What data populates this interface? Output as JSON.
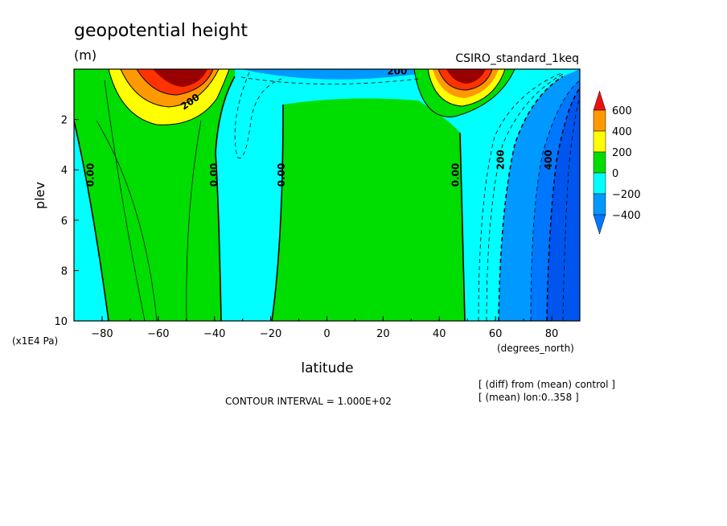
{
  "chart_data": {
    "type": "heatmap",
    "title": "geopotential height",
    "units": "(m)",
    "model_label": "CSIRO_standard_1keq",
    "xlabel": "latitude",
    "x_units": "(degrees_north)",
    "ylabel": "plev",
    "y_units": "(x1E4 Pa)",
    "xlim": [
      -90,
      90
    ],
    "ylim": [
      10,
      0
    ],
    "x_ticks": [
      -80,
      -60,
      -40,
      -20,
      0,
      20,
      40,
      60,
      80
    ],
    "x_tick_labels": [
      "−80",
      "−60",
      "−40",
      "−20",
      "0",
      "20",
      "40",
      "60",
      "80"
    ],
    "y_ticks": [
      2,
      4,
      6,
      8,
      10
    ],
    "y_tick_labels": [
      "2",
      "4",
      "6",
      "8",
      "10"
    ],
    "contour_interval_text": "CONTOUR INTERVAL = 1.000E+02",
    "notes": [
      "[ (diff) from (mean) control ]",
      "[ (mean) lon:0..358 ]"
    ],
    "colorbar": {
      "levels": [
        600,
        400,
        200,
        0,
        -200,
        -400
      ],
      "labels": [
        "600",
        "400",
        "200",
        "0",
        "−200",
        "−400"
      ],
      "colors": [
        "#ff0000",
        "#ff9900",
        "#ffff00",
        "#00dd00",
        "#00ffff",
        "#0099ff",
        "#0055ee"
      ],
      "top_triangle_color": "#ee1111",
      "bottom_triangle_color": "#0077ff"
    },
    "contour_labels": [
      {
        "text": "0.00",
        "lat": -83,
        "plev": 4.2
      },
      {
        "text": "0.00",
        "lat": -39,
        "plev": 4.2
      },
      {
        "text": "0.00",
        "lat": -15,
        "plev": 4.2
      },
      {
        "text": "0.00",
        "lat": 47,
        "plev": 4.2
      },
      {
        "text": "200",
        "lat": 63,
        "plev": 3.6
      },
      {
        "text": "400",
        "lat": 80,
        "plev": 3.6
      },
      {
        "text": "200",
        "lat": -48,
        "plev": 1.4
      },
      {
        "text": "200",
        "lat": 25,
        "plev": 0.2
      }
    ]
  }
}
